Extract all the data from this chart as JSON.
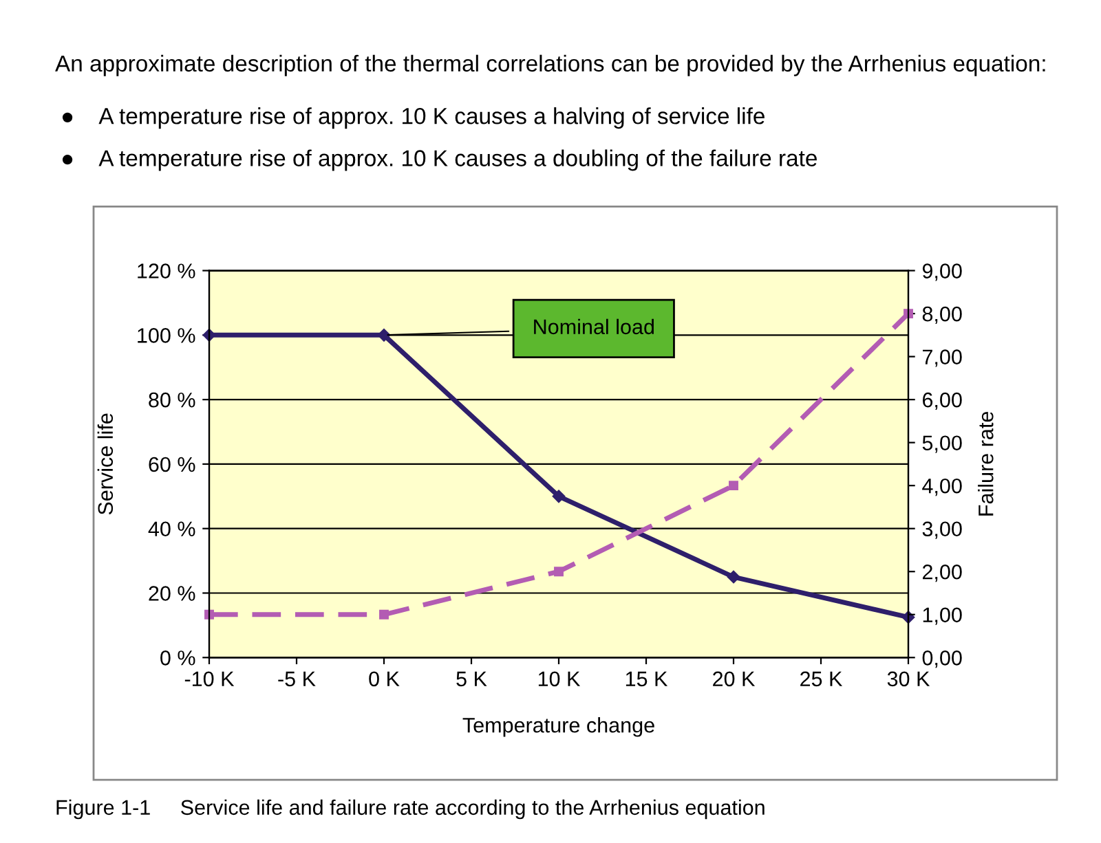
{
  "chart_data": {
    "type": "line",
    "title": "An approximate description of the thermal correlations can be provided by the Arrhenius equation:",
    "xlabel": "Temperature change",
    "ylabel": "Service life",
    "y2label": "Failure rate",
    "x": [
      -10,
      0,
      10,
      20,
      30
    ],
    "series": [
      {
        "name": null,
        "color": "#2e1f6b",
        "values": [
          100,
          100,
          50,
          25,
          12.5
        ],
        "marker": "diamond",
        "line_style": "solid"
      },
      {
        "name": null,
        "color": "#b35cb3",
        "values": [
          1,
          1,
          2,
          4,
          8
        ],
        "axis": "y2",
        "marker": "square",
        "line_style": "dashed"
      }
    ],
    "xlim": [
      -10,
      30
    ],
    "xticks": [
      {
        "value": -10,
        "label": "-10 K"
      },
      {
        "value": -5,
        "label": "-5 K"
      },
      {
        "value": 0,
        "label": "0 K"
      },
      {
        "value": 5,
        "label": "5 K"
      },
      {
        "value": 10,
        "label": "10 K"
      },
      {
        "value": 15,
        "label": "15 K"
      },
      {
        "value": 20,
        "label": "20 K"
      },
      {
        "value": 25,
        "label": "25 K"
      },
      {
        "value": 30,
        "label": "30 K"
      }
    ],
    "ylim": [
      0,
      120
    ],
    "yticks": [
      {
        "value": 0,
        "label": "0 %"
      },
      {
        "value": 20,
        "label": "20 %"
      },
      {
        "value": 40,
        "label": "40 %"
      },
      {
        "value": 60,
        "label": "60 %"
      },
      {
        "value": 80,
        "label": "80 %"
      },
      {
        "value": 100,
        "label": "100 %"
      },
      {
        "value": 120,
        "label": "120 %"
      }
    ],
    "y2lim": [
      0,
      9
    ],
    "y2ticks": [
      {
        "value": 0,
        "label": "0,00"
      },
      {
        "value": 1,
        "label": "1,00"
      },
      {
        "value": 2,
        "label": "2,00"
      },
      {
        "value": 3,
        "label": "3,00"
      },
      {
        "value": 4,
        "label": "4,00"
      },
      {
        "value": 5,
        "label": "5,00"
      },
      {
        "value": 6,
        "label": "6,00"
      },
      {
        "value": 7,
        "label": "7,00"
      },
      {
        "value": 8,
        "label": "8,00"
      },
      {
        "value": 9,
        "label": "9,00"
      }
    ],
    "grid": "y",
    "annotations": [
      {
        "text": "Nominal load",
        "x": 0,
        "y": 100
      },
      "●    A temperature rise of approx. 10 K causes a halving of service life",
      "●    A temperature rise of approx. 10 K causes a doubling of the failure rate",
      "Figure 1-1     Service life and failure rate according to the Arrhenius equation"
    ]
  }
}
